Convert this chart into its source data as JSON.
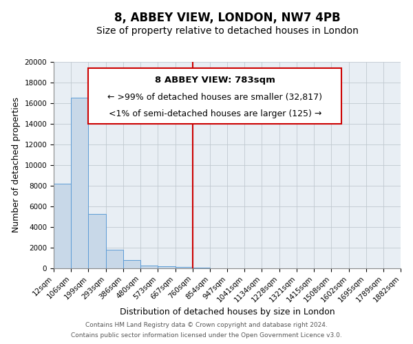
{
  "title": "8, ABBEY VIEW, LONDON, NW7 4PB",
  "subtitle": "Size of property relative to detached houses in London",
  "xlabel": "Distribution of detached houses by size in London",
  "ylabel": "Number of detached properties",
  "bin_labels": [
    "12sqm",
    "106sqm",
    "199sqm",
    "293sqm",
    "386sqm",
    "480sqm",
    "573sqm",
    "667sqm",
    "760sqm",
    "854sqm",
    "947sqm",
    "1041sqm",
    "1134sqm",
    "1228sqm",
    "1321sqm",
    "1415sqm",
    "1508sqm",
    "1602sqm",
    "1695sqm",
    "1789sqm",
    "1882sqm"
  ],
  "bin_edges": [
    12,
    106,
    199,
    293,
    386,
    480,
    573,
    667,
    760,
    854,
    947,
    1041,
    1134,
    1228,
    1321,
    1415,
    1508,
    1602,
    1695,
    1789,
    1882
  ],
  "bar_values": [
    8200,
    16500,
    5300,
    1800,
    800,
    300,
    200,
    120,
    100,
    0,
    0,
    0,
    0,
    0,
    0,
    0,
    0,
    0,
    0,
    0
  ],
  "bar_color": "#c8d8e8",
  "bar_edge_color": "#5b9bd5",
  "vline_x": 760,
  "vline_color": "#cc0000",
  "ylim": [
    0,
    20000
  ],
  "yticks": [
    0,
    2000,
    4000,
    6000,
    8000,
    10000,
    12000,
    14000,
    16000,
    18000,
    20000
  ],
  "background_color": "#e8eef4",
  "grid_color": "#ffffff",
  "grid_line_color": "#c0c8d0",
  "annotation_box_text_line1": "8 ABBEY VIEW: 783sqm",
  "annotation_box_text_line2": "← >99% of detached houses are smaller (32,817)",
  "annotation_box_text_line3": "<1% of semi-detached houses are larger (125) →",
  "footer_line1": "Contains HM Land Registry data © Crown copyright and database right 2024.",
  "footer_line2": "Contains public sector information licensed under the Open Government Licence v3.0.",
  "title_fontsize": 12,
  "subtitle_fontsize": 10,
  "axis_label_fontsize": 9,
  "tick_fontsize": 7.5,
  "annotation_fontsize": 9,
  "footer_fontsize": 6.5
}
